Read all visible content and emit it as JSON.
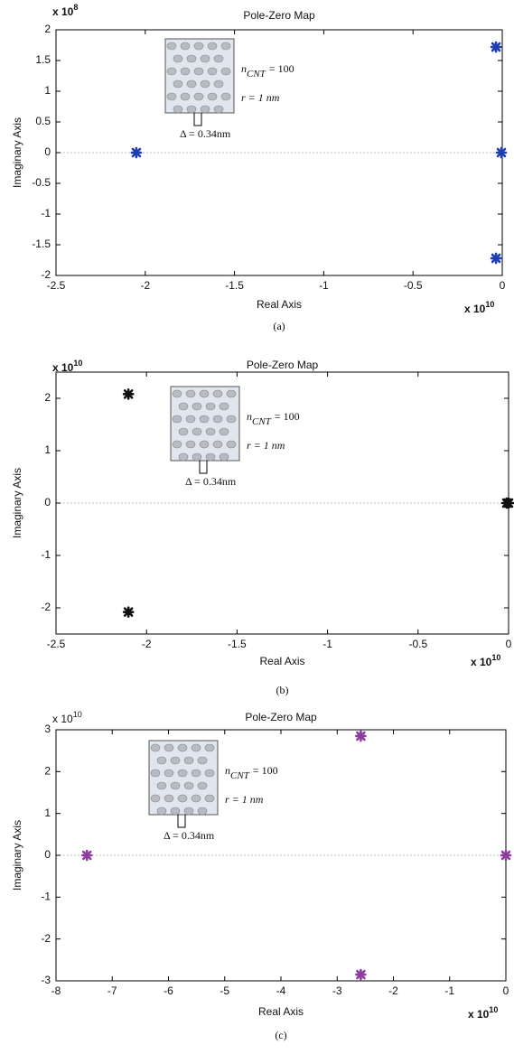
{
  "chart_data": [
    {
      "type": "scatter",
      "title": "Pole-Zero Map",
      "xlabel": "Real Axis",
      "ylabel": "Imaginary Axis",
      "x_exponent": {
        "base": "x 10",
        "power": "10"
      },
      "y_exponent": {
        "base": "x 10",
        "power": "8"
      },
      "caption": "(a)",
      "x": [
        -2.05,
        -0.035,
        -0.005,
        -0.035
      ],
      "values": [
        0,
        1.72,
        0,
        -1.72
      ],
      "color": "#1f3fb0",
      "xlim": [
        -2.5,
        0
      ],
      "xticks": [
        -2.5,
        -2,
        -1.5,
        -1,
        -0.5,
        0
      ],
      "ylim": [
        -2,
        2
      ],
      "yticks": [
        -2,
        -1.5,
        -1,
        -0.5,
        0,
        0.5,
        1,
        1.5,
        2
      ],
      "grid": false,
      "inset": {
        "var": "n",
        "sub": "CNT",
        "eq": "= 100",
        "r": "r   =   1 nm",
        "delta": "Δ = 0.34nm"
      }
    },
    {
      "type": "scatter",
      "title": "Pole-Zero Map",
      "xlabel": "Real Axis",
      "ylabel": "Imaginary Axis",
      "x_exponent": {
        "base": "x 10",
        "power": "10"
      },
      "y_exponent": {
        "base": "x 10",
        "power": "10"
      },
      "caption": "(b)",
      "x": [
        -2.1,
        -2.1,
        -0.01,
        0
      ],
      "values": [
        2.08,
        -2.08,
        0,
        0
      ],
      "color": "#111111",
      "xlim": [
        -2.5,
        0
      ],
      "xticks": [
        -2.5,
        -2,
        -1.5,
        -1,
        -0.5,
        0
      ],
      "ylim": [
        -2.5,
        2.5
      ],
      "yticks": [
        -2,
        -1,
        0,
        1,
        2
      ],
      "grid": false,
      "inset": {
        "var": "n",
        "sub": "CNT",
        "eq": "= 100",
        "r": "r   =   1 nm",
        "delta": "Δ = 0.34nm"
      }
    },
    {
      "type": "scatter",
      "title": "Pole-Zero Map",
      "xlabel": "Real Axis",
      "ylabel": "Imaginary Axis",
      "x_exponent": {
        "base": "x 10",
        "power": "10"
      },
      "y_exponent": {
        "base": "x 10",
        "power": "10"
      },
      "caption": "(c)",
      "x": [
        -7.45,
        -2.58,
        -2.58,
        0
      ],
      "values": [
        0,
        2.85,
        -2.85,
        0
      ],
      "color": "#8e3c9e",
      "xlim": [
        -8,
        0
      ],
      "xticks": [
        -8,
        -7,
        -6,
        -5,
        -4,
        -3,
        -2,
        -1,
        0
      ],
      "ylim": [
        -3,
        3
      ],
      "yticks": [
        -3,
        -2,
        -1,
        0,
        1,
        2,
        3
      ],
      "grid": false,
      "inset": {
        "var": "n",
        "sub": "CNT",
        "eq": "= 100",
        "r": "r   =   1 nm",
        "delta": "Δ = 0.34nm"
      }
    }
  ]
}
